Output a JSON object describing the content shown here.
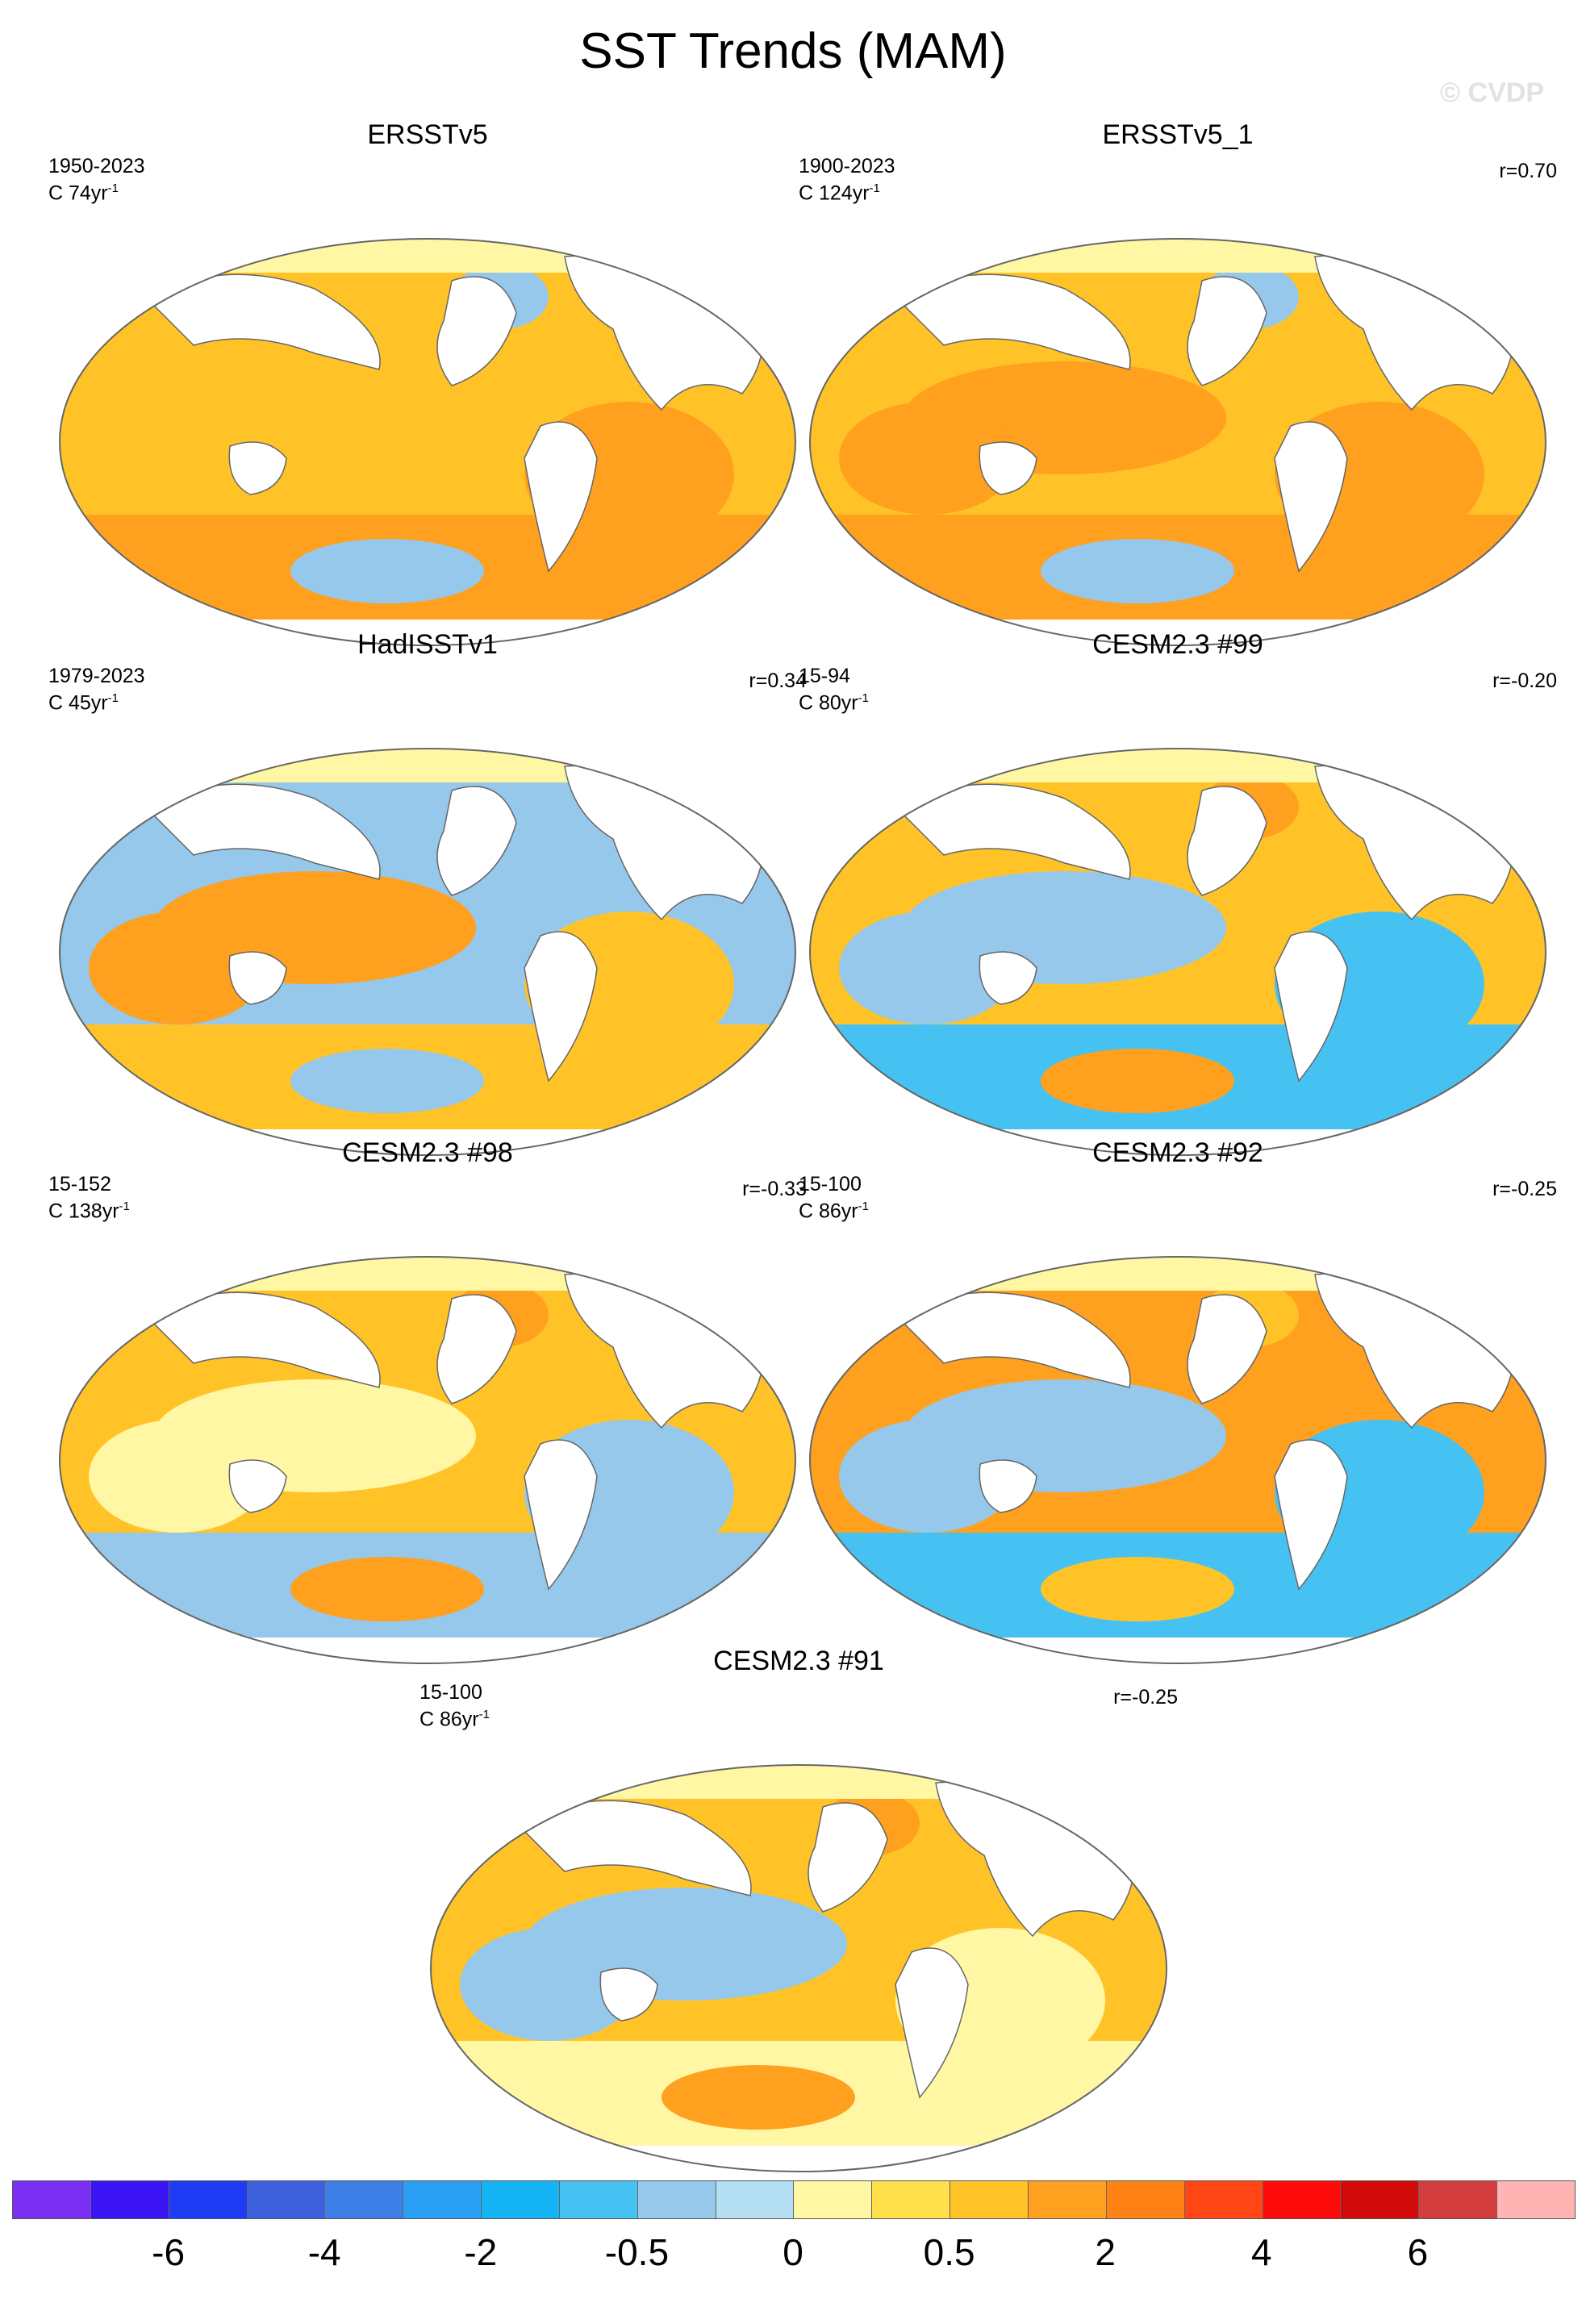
{
  "title": "SST Trends (MAM)",
  "watermark": "© CVDP",
  "panels": [
    {
      "name": "ERSSTv5",
      "period": "1950-2023",
      "units": "C 74yr",
      "sup": "-1",
      "r": ""
    },
    {
      "name": "ERSSTv5_1",
      "period": "1900-2023",
      "units": "C 124yr",
      "sup": "-1",
      "r": "r=0.70"
    },
    {
      "name": "HadISSTv1",
      "period": "1979-2023",
      "units": "C 45yr",
      "sup": "-1",
      "r": "r=0.34"
    },
    {
      "name": "CESM2.3 #99",
      "period": "15-94",
      "units": "C 80yr",
      "sup": "-1",
      "r": "r=-0.20"
    },
    {
      "name": "CESM2.3 #98",
      "period": "15-152",
      "units": "C 138yr",
      "sup": "-1",
      "r": "r=-0.33"
    },
    {
      "name": "CESM2.3 #92",
      "period": "15-100",
      "units": "C 86yr",
      "sup": "-1",
      "r": "r=-0.25"
    },
    {
      "name": "CESM2.3 #91",
      "period": "15-100",
      "units": "C 86yr",
      "sup": "-1",
      "r": "r=-0.25"
    }
  ],
  "colorbar": {
    "colors": [
      "#7b2ff2",
      "#3a14f2",
      "#1f3cf5",
      "#3d5fdb",
      "#3d7fe6",
      "#2aa0f5",
      "#14b4f5",
      "#46c2f2",
      "#95c8ea",
      "#b4def2",
      "#fff7a3",
      "#ffe04a",
      "#ffc328",
      "#ffa01e",
      "#ff8214",
      "#ff4614",
      "#ff0a0a",
      "#d20a0a",
      "#d23c3c",
      "#ffb4b4"
    ],
    "labels": [
      "-6",
      "-4",
      "-2",
      "-0.5",
      "0",
      "0.5",
      "2",
      "4",
      "6"
    ]
  },
  "colors": {
    "ocean_warm": "#ffc328",
    "ocean_strong": "#ffa01e",
    "ocean_cool": "#95c8ea",
    "ocean_blue": "#46c2f2",
    "ocean_neutral": "#fff7a3",
    "land": "#ffffff"
  }
}
